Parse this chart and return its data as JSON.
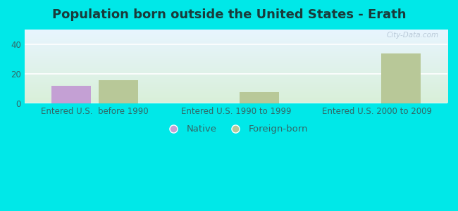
{
  "title": "Population born outside the United States - Erath",
  "title_color": "#1a3a3a",
  "background_color": "#00e8e8",
  "categories": [
    "Entered U.S.  before 1990",
    "Entered U.S. 1990 to 1999",
    "Entered U.S. 2000 to 2009"
  ],
  "native_values": [
    12,
    0,
    0
  ],
  "foreign_values": [
    16,
    8,
    34
  ],
  "native_color": "#c4a0d4",
  "foreign_color": "#b8c898",
  "ylim": [
    0,
    50
  ],
  "yticks": [
    0,
    20,
    40
  ],
  "bar_width": 0.28,
  "watermark": "City-Data.com",
  "legend_native": "Native",
  "legend_foreign": "Foreign-born",
  "title_fontsize": 13,
  "tick_fontsize": 8.5,
  "legend_fontsize": 9.5,
  "tick_color": "#336666"
}
